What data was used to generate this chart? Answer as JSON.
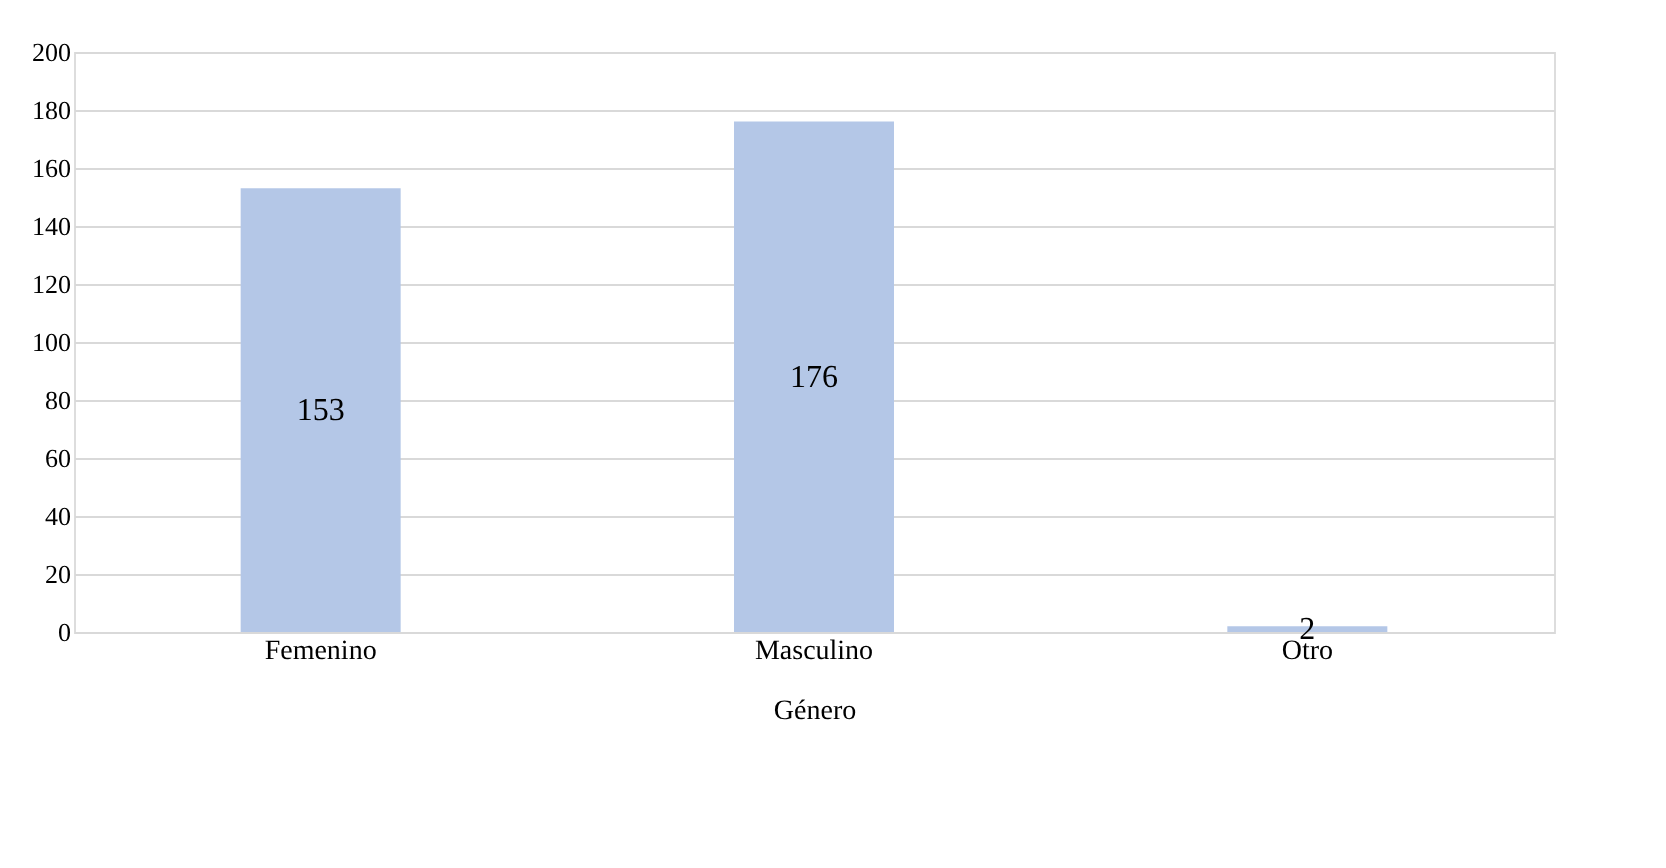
{
  "chart_data": {
    "type": "bar",
    "xlabel": "Género",
    "categories": [
      "Femenino",
      "Masculino",
      "Otro"
    ],
    "values": [
      153,
      176,
      2
    ],
    "color": "#b4c7e7",
    "ylim": [
      0,
      200
    ],
    "yticks": [
      0,
      20,
      40,
      60,
      80,
      100,
      120,
      140,
      160,
      180,
      200
    ],
    "grid": "y",
    "data_labels": true
  }
}
